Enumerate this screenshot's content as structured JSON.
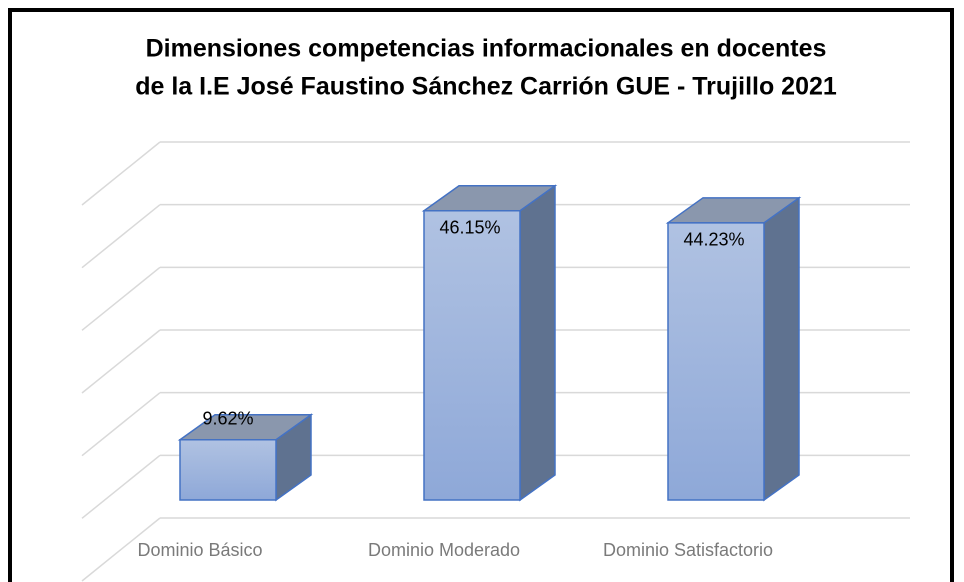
{
  "chart_data": {
    "type": "bar3d",
    "title": "Dimensiones competencias informacionales en docentes",
    "subtitle": "de la I.E José Faustino Sánchez Carrión GUE - Trujillo 2021",
    "categories": [
      "Dominio Básico",
      "Dominio Moderado",
      "Dominio Satisfactorio"
    ],
    "values": [
      9.62,
      46.15,
      44.23
    ],
    "value_labels": [
      "9.62%",
      "46.15%",
      "44.23%"
    ],
    "color": "#4472c4",
    "ylim": [
      0,
      60
    ],
    "yticks": [
      0,
      10,
      20,
      30,
      40,
      50,
      60
    ],
    "grid": true
  }
}
